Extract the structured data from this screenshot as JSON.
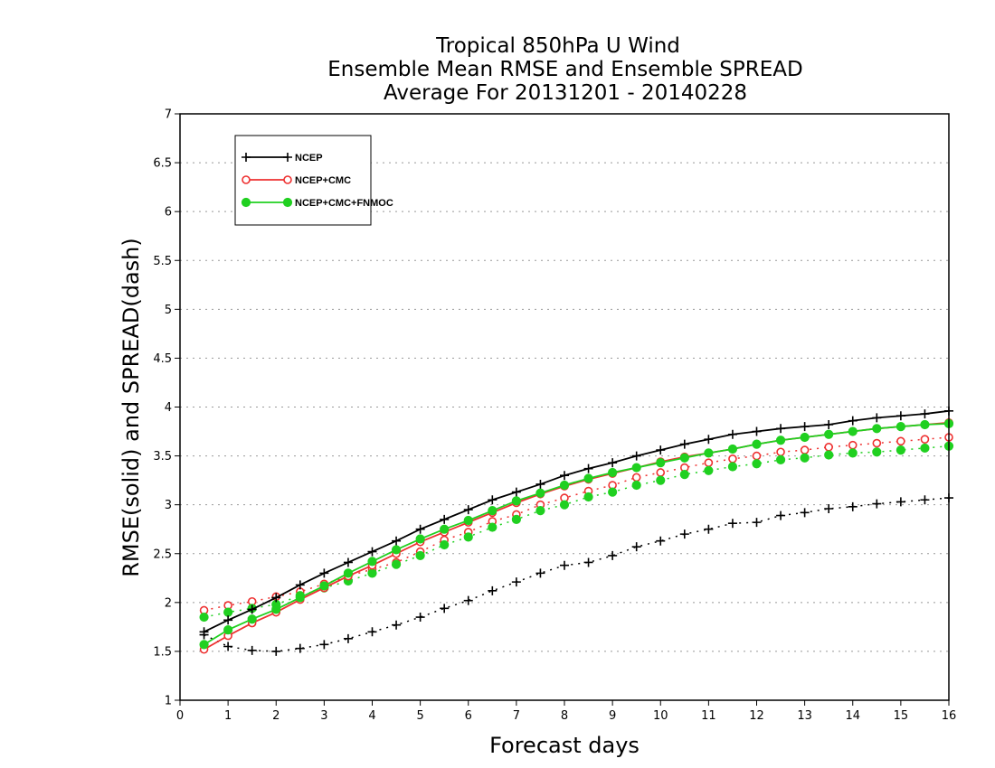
{
  "chart_data": {
    "type": "line",
    "title": [
      "Tropical 850hPa U Wind",
      "Ensemble Mean RMSE and Ensemble SPREAD",
      "Average For 20131201 - 20140228"
    ],
    "xlabel": "Forecast days",
    "ylabel": "RMSE(solid) and SPREAD(dash)",
    "xlim": [
      0,
      16
    ],
    "ylim": [
      1,
      7
    ],
    "xticks": [
      0,
      1,
      2,
      3,
      4,
      5,
      6,
      7,
      8,
      9,
      10,
      11,
      12,
      13,
      14,
      15,
      16
    ],
    "yticks": [
      1,
      1.5,
      2,
      2.5,
      3,
      3.5,
      4,
      4.5,
      5,
      5.5,
      6,
      6.5,
      7
    ],
    "grid": "horizontal dotted",
    "legend_placement": "top-left",
    "x": [
      0.5,
      1,
      1.5,
      2,
      2.5,
      3,
      3.5,
      4,
      4.5,
      5,
      5.5,
      6,
      6.5,
      7,
      7.5,
      8,
      8.5,
      9,
      9.5,
      10,
      10.5,
      11,
      11.5,
      12,
      12.5,
      13,
      13.5,
      14,
      14.5,
      15,
      15.5,
      16
    ],
    "series": [
      {
        "name": "NCEP",
        "color": "#000000",
        "marker": "plus",
        "rmse": [
          1.7,
          1.82,
          1.93,
          2.05,
          2.18,
          2.3,
          2.41,
          2.52,
          2.63,
          2.75,
          2.85,
          2.95,
          3.05,
          3.13,
          3.21,
          3.3,
          3.37,
          3.43,
          3.5,
          3.56,
          3.62,
          3.67,
          3.72,
          3.75,
          3.78,
          3.8,
          3.82,
          3.86,
          3.89,
          3.91,
          3.93,
          3.96
        ],
        "spread": [
          1.67,
          1.55,
          1.51,
          1.5,
          1.53,
          1.57,
          1.63,
          1.7,
          1.77,
          1.85,
          1.94,
          2.02,
          2.12,
          2.21,
          2.3,
          2.38,
          2.41,
          2.48,
          2.57,
          2.63,
          2.7,
          2.75,
          2.81,
          2.82,
          2.89,
          2.92,
          2.96,
          2.98,
          3.01,
          3.03,
          3.05,
          3.07
        ]
      },
      {
        "name": "NCEP+CMC",
        "color": "#ee3030",
        "marker": "open-circle",
        "rmse": [
          1.52,
          1.66,
          1.79,
          1.9,
          2.03,
          2.15,
          2.27,
          2.38,
          2.5,
          2.62,
          2.72,
          2.82,
          2.92,
          3.02,
          3.11,
          3.19,
          3.26,
          3.32,
          3.38,
          3.44,
          3.49,
          3.53,
          3.57,
          3.62,
          3.66,
          3.69,
          3.72,
          3.75,
          3.78,
          3.8,
          3.82,
          3.84
        ],
        "spread": [
          1.92,
          1.97,
          2.01,
          2.06,
          2.11,
          2.19,
          2.27,
          2.34,
          2.41,
          2.52,
          2.64,
          2.72,
          2.83,
          2.9,
          3.0,
          3.07,
          3.14,
          3.2,
          3.28,
          3.33,
          3.38,
          3.43,
          3.47,
          3.5,
          3.54,
          3.56,
          3.59,
          3.61,
          3.63,
          3.65,
          3.67,
          3.69
        ]
      },
      {
        "name": "NCEP+CMC+FNMOC",
        "color": "#20d020",
        "marker": "filled-circle",
        "rmse": [
          1.57,
          1.72,
          1.83,
          1.93,
          2.05,
          2.17,
          2.3,
          2.42,
          2.54,
          2.65,
          2.75,
          2.84,
          2.94,
          3.04,
          3.12,
          3.2,
          3.27,
          3.33,
          3.38,
          3.43,
          3.48,
          3.53,
          3.57,
          3.62,
          3.66,
          3.69,
          3.72,
          3.75,
          3.78,
          3.8,
          3.82,
          3.83
        ],
        "spread": [
          1.85,
          1.9,
          1.94,
          1.98,
          2.07,
          2.15,
          2.22,
          2.3,
          2.39,
          2.48,
          2.59,
          2.67,
          2.77,
          2.85,
          2.94,
          3.0,
          3.08,
          3.13,
          3.2,
          3.25,
          3.31,
          3.35,
          3.39,
          3.42,
          3.46,
          3.48,
          3.51,
          3.53,
          3.54,
          3.56,
          3.58,
          3.6
        ]
      }
    ]
  }
}
